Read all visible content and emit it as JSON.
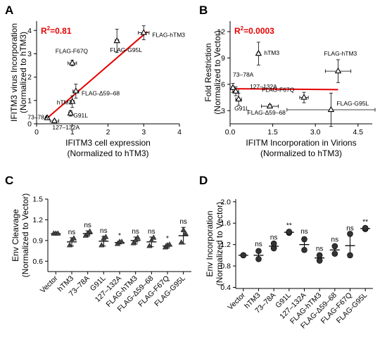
{
  "figure": {
    "panel_letters": [
      "A",
      "B",
      "C",
      "D"
    ]
  },
  "chart_data": [
    {
      "panel": "A",
      "type": "scatter",
      "xlabel": "IFITM3 cell expression",
      "xlabel2": "(Normalized to hTM3)",
      "ylabel": "IFITM3 virus Incorporation",
      "ylabel2": "(Normalized to hTM3)",
      "xlim": [
        0,
        4
      ],
      "ylim": [
        0,
        4.4
      ],
      "xticks": [
        0,
        1,
        2,
        3,
        4
      ],
      "yticks": [
        0,
        1,
        2,
        3,
        4
      ],
      "annotation": {
        "text": "R",
        "sup": "2",
        "value": "=0.81"
      },
      "fit_line": [
        [
          0.3,
          0.25
        ],
        [
          3.1,
          3.95
        ]
      ],
      "points": [
        {
          "label": "73–78A",
          "x": 0.3,
          "y": 0.25,
          "xerr": 0.05,
          "yerr": 0.07
        },
        {
          "label": "127–132A",
          "x": 0.5,
          "y": 0.12,
          "xerr": 0.12,
          "yerr": 0.05
        },
        {
          "label": "G91L",
          "x": 0.95,
          "y": 0.45,
          "xerr": 0.05,
          "yerr": 0.12
        },
        {
          "label": "hTM3",
          "x": 1.0,
          "y": 0.95,
          "xerr": 0.05,
          "yerr": 0.25
        },
        {
          "label": "FLAG-Δ59–68",
          "x": 1.1,
          "y": 1.4,
          "xerr": 0.08,
          "yerr": 0.3
        },
        {
          "label": "FLAG-F67Q",
          "x": 1.0,
          "y": 2.6,
          "xerr": 0.12,
          "yerr": 0.12
        },
        {
          "label": "FLAG-G95L",
          "x": 2.25,
          "y": 3.55,
          "xerr": 0.05,
          "yerr": 0.5
        },
        {
          "label": "FLAG-hTM3",
          "x": 3.0,
          "y": 3.9,
          "xerr": 0.15,
          "yerr": 0.3
        }
      ]
    },
    {
      "panel": "B",
      "type": "scatter",
      "xlabel": "IFITM Incorporation in Virions",
      "xlabel2": "(Normalized to hTM3)",
      "ylabel": "Fold Restriction",
      "ylabel2": "(Normalized to Vector)",
      "xlim": [
        0,
        5
      ],
      "ylim": [
        1.5,
        13.2
      ],
      "xticks": [
        0.0,
        1.5,
        3.0,
        4.5
      ],
      "xtick_labels": [
        "0.0",
        "1.5",
        "3.0",
        "4.5"
      ],
      "yticks": [
        3,
        6,
        9,
        12
      ],
      "annotation": {
        "text": "R",
        "sup": "2",
        "value": "=0.0003"
      },
      "fit_line": [
        [
          0.05,
          5.5
        ],
        [
          3.8,
          5.4
        ]
      ],
      "points": [
        {
          "label": "73–78A",
          "x": 0.1,
          "y": 5.6,
          "xerr": 0.05,
          "yerr": 0.5
        },
        {
          "label": "127–132A",
          "x": 0.2,
          "y": 5.2,
          "xerr": 0.1,
          "yerr": 0.5
        },
        {
          "label": "G91L",
          "x": 0.3,
          "y": 4.3,
          "xerr": 0.1,
          "yerr": 0.7
        },
        {
          "label": "hTM3",
          "x": 1.0,
          "y": 9.5,
          "xerr": 0.05,
          "yerr": 1.3
        },
        {
          "label": "FLAG-Δ59–68",
          "x": 1.4,
          "y": 3.5,
          "xerr": 0.3,
          "yerr": 0.2
        },
        {
          "label": "FLAG-F67Q",
          "x": 2.6,
          "y": 4.5,
          "xerr": 0.15,
          "yerr": 0.6
        },
        {
          "label": "FLAG-hTM3",
          "x": 3.8,
          "y": 7.5,
          "xerr": 0.45,
          "yerr": 1.3
        },
        {
          "label": "FLAG-G95L",
          "x": 3.55,
          "y": 3.1,
          "xerr": 1.55,
          "yerr": 1.9
        }
      ]
    },
    {
      "panel": "C",
      "type": "scatter",
      "ylabel": "Env Cleavage",
      "ylabel2": "(Normalized to Vector)",
      "ylim": [
        0.45,
        1.5
      ],
      "yticks": [
        0.6,
        0.9,
        1.2,
        1.5
      ],
      "yticklabels": [
        "0.6",
        "0.9",
        "1.2",
        "1.5"
      ],
      "marker": "triangle",
      "categories": [
        "Vector",
        "hTM3",
        "73–78A",
        "G91L",
        "127–132A",
        "FLAG-hTM3",
        "FLAG-Δ59–68",
        "FLAG-F67Q",
        "FLAG-G95L"
      ],
      "significance": [
        "",
        "ns",
        "ns",
        "ns",
        "*",
        "ns",
        "ns",
        "*",
        "ns"
      ],
      "means": [
        1.0,
        0.88,
        1.0,
        0.89,
        0.87,
        0.9,
        0.88,
        0.82,
        0.97
      ],
      "errors": [
        0.02,
        0.06,
        0.04,
        0.07,
        0.02,
        0.05,
        0.07,
        0.03,
        0.12
      ],
      "replicates": [
        [
          1.0,
          1.0,
          1.0
        ],
        [
          0.83,
          0.9,
          0.93
        ],
        [
          0.97,
          1.0,
          1.03
        ],
        [
          0.83,
          0.93,
          0.95
        ],
        [
          0.85,
          0.88,
          0.88
        ],
        [
          0.86,
          0.9,
          0.94
        ],
        [
          0.82,
          0.9,
          0.94
        ],
        [
          0.8,
          0.83,
          0.84
        ],
        [
          0.87,
          1.05,
          1.0
        ]
      ]
    },
    {
      "panel": "D",
      "type": "scatter",
      "ylabel": "Env Incorporation",
      "ylabel2": "(Normalized to Vector)",
      "ylim": [
        0.38,
        2.05
      ],
      "yticks": [
        0.4,
        0.8,
        1.2,
        1.6,
        2.0
      ],
      "yticklabels": [
        "0.4",
        "0.8",
        "1.2",
        "1.6",
        "2.0"
      ],
      "marker": "circle",
      "categories": [
        "Vector",
        "hTM3",
        "73–78A",
        "G91L",
        "127–132A",
        "FLAG-hTM3",
        "FLAG-Δ59–68",
        "FLAG-F67Q",
        "FLAG-G95L"
      ],
      "significance": [
        "",
        "ns",
        "ns",
        "**",
        "ns",
        "ns",
        "ns",
        "ns",
        "**"
      ],
      "means": [
        1.0,
        1.0,
        1.17,
        1.43,
        1.2,
        0.95,
        1.1,
        1.18,
        1.5
      ],
      "errors": [
        0.02,
        0.1,
        0.06,
        0.02,
        0.14,
        0.07,
        0.09,
        0.22,
        0.02
      ],
      "replicates": [
        [
          1.0,
          1.0
        ],
        [
          0.93,
          1.08
        ],
        [
          1.13,
          1.22
        ],
        [
          1.42,
          1.44
        ],
        [
          1.1,
          1.3
        ],
        [
          0.9,
          1.0
        ],
        [
          1.03,
          1.17
        ],
        [
          1.0,
          1.4
        ],
        [
          1.49,
          1.51
        ]
      ]
    }
  ]
}
